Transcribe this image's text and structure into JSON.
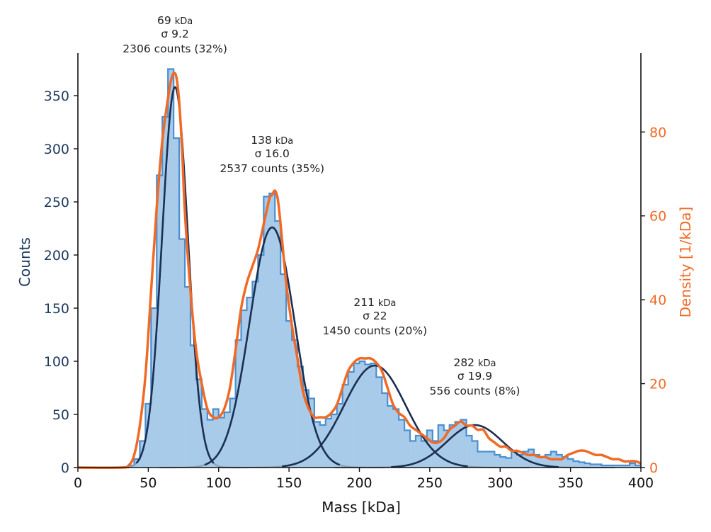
{
  "chart_data": {
    "type": "bar",
    "xlabel": "Mass [kDa]",
    "ylabel_left": "Counts",
    "ylabel_right": "Density [1/kDa]",
    "xlim": [
      0,
      400
    ],
    "ylim_left": [
      0,
      390
    ],
    "ylim_right": [
      0,
      98.8
    ],
    "x_ticks": [
      "0",
      "50",
      "100",
      "150",
      "200",
      "250",
      "300",
      "350",
      "400"
    ],
    "y_left_ticks": [
      "0",
      "50",
      "100",
      "150",
      "200",
      "250",
      "300",
      "350"
    ],
    "y_right_ticks": [
      "0",
      "20",
      "40",
      "60",
      "80"
    ],
    "grid": false,
    "colors": {
      "histogram_fill": "#a9cbea",
      "histogram_edge": "#4a8fd0",
      "gaussian_fit": "#1b2f52",
      "gaussian_fit_faded": "#8a9bb0",
      "density": "#f06a26",
      "left_axis": "#1f3a5f",
      "right_axis": "#f06a26"
    },
    "histogram": {
      "bin_width": 4,
      "bin_starts": [
        0,
        4,
        8,
        12,
        16,
        20,
        24,
        28,
        32,
        36,
        40,
        44,
        48,
        52,
        56,
        60,
        64,
        68,
        72,
        76,
        80,
        84,
        88,
        92,
        96,
        100,
        104,
        108,
        112,
        116,
        120,
        124,
        128,
        132,
        136,
        140,
        144,
        148,
        152,
        156,
        160,
        164,
        168,
        172,
        176,
        180,
        184,
        188,
        192,
        196,
        200,
        204,
        208,
        212,
        216,
        220,
        224,
        228,
        232,
        236,
        240,
        244,
        248,
        252,
        256,
        260,
        264,
        268,
        272,
        276,
        280,
        284,
        288,
        292,
        296,
        300,
        304,
        308,
        312,
        316,
        320,
        324,
        328,
        332,
        336,
        340,
        344,
        348,
        352,
        356,
        360,
        364,
        368,
        372,
        376,
        380,
        384,
        388,
        392,
        396
      ],
      "counts": [
        0,
        0,
        0,
        0,
        0,
        0,
        0,
        0,
        0,
        2,
        8,
        25,
        60,
        150,
        275,
        330,
        375,
        310,
        215,
        170,
        115,
        83,
        55,
        45,
        55,
        47,
        52,
        65,
        120,
        148,
        160,
        175,
        200,
        255,
        258,
        232,
        182,
        138,
        120,
        95,
        73,
        65,
        43,
        40,
        46,
        50,
        60,
        78,
        90,
        98,
        100,
        97,
        98,
        85,
        70,
        58,
        55,
        45,
        35,
        25,
        30,
        25,
        35,
        25,
        40,
        35,
        40,
        43,
        45,
        30,
        25,
        15,
        15,
        15,
        12,
        10,
        9,
        15,
        12,
        15,
        17,
        12,
        10,
        12,
        15,
        12,
        10,
        8,
        6,
        5,
        4,
        3,
        3,
        2,
        2,
        2,
        2,
        2,
        4,
        2
      ]
    },
    "gaussian_fits": [
      {
        "mean": 69,
        "sigma": 9.2,
        "amplitude": 358
      },
      {
        "mean": 138,
        "sigma": 16.0,
        "amplitude": 226
      },
      {
        "mean": 211,
        "sigma": 22,
        "amplitude": 96
      },
      {
        "mean": 282,
        "sigma": 19.9,
        "amplitude": 40
      }
    ],
    "density_curve": {
      "x": [
        0,
        30,
        36,
        40,
        44,
        48,
        52,
        56,
        60,
        64,
        66,
        68,
        70,
        72,
        74,
        76,
        80,
        84,
        88,
        92,
        96,
        100,
        104,
        108,
        112,
        116,
        120,
        124,
        128,
        132,
        136,
        138,
        140,
        142,
        144,
        148,
        152,
        156,
        160,
        164,
        168,
        172,
        176,
        180,
        184,
        188,
        192,
        196,
        200,
        204,
        208,
        212,
        216,
        220,
        224,
        228,
        232,
        236,
        240,
        244,
        248,
        252,
        256,
        260,
        264,
        268,
        272,
        276,
        280,
        284,
        288,
        292,
        296,
        300,
        304,
        308,
        312,
        316,
        320,
        324,
        328,
        332,
        336,
        340,
        344,
        348,
        352,
        356,
        360,
        364,
        368,
        372,
        376,
        380,
        384,
        388,
        392,
        396,
        400
      ],
      "y": [
        0,
        0,
        0.5,
        3,
        10,
        22,
        42,
        62,
        78,
        88,
        92,
        94,
        93,
        87,
        76,
        61,
        42,
        28,
        20,
        14,
        12,
        12,
        14,
        19,
        28,
        38,
        44,
        48,
        52,
        58,
        64,
        65,
        66,
        64,
        58,
        44,
        34,
        26,
        18,
        14,
        12,
        12,
        12,
        13,
        15,
        19,
        23,
        25,
        26,
        26,
        26,
        25,
        23,
        19,
        15,
        13,
        12,
        10,
        9,
        8,
        7,
        6,
        6,
        7,
        9,
        10,
        11,
        10,
        10,
        9,
        9,
        7,
        6,
        5,
        5,
        4,
        4,
        3.5,
        3,
        3,
        2.5,
        2.5,
        2,
        2,
        2,
        3,
        3.5,
        4,
        4,
        3.5,
        3,
        3,
        2.5,
        2,
        2,
        1.5,
        1.5,
        1.5,
        1
      ]
    },
    "annotations": [
      {
        "mass": "69",
        "unit": "kDa",
        "sigma": "σ 9.2",
        "counts": "2306 counts (32%)",
        "x": 69
      },
      {
        "mass": "138",
        "unit": "kDa",
        "sigma": "σ 16.0",
        "counts": "2537 counts (35%)",
        "x": 138
      },
      {
        "mass": "211",
        "unit": "kDa",
        "sigma": "σ 22",
        "counts": "1450 counts (20%)",
        "x": 211
      },
      {
        "mass": "282",
        "unit": "kDa",
        "sigma": "σ 19.9",
        "counts": "556 counts (8%)",
        "x": 282
      }
    ]
  }
}
